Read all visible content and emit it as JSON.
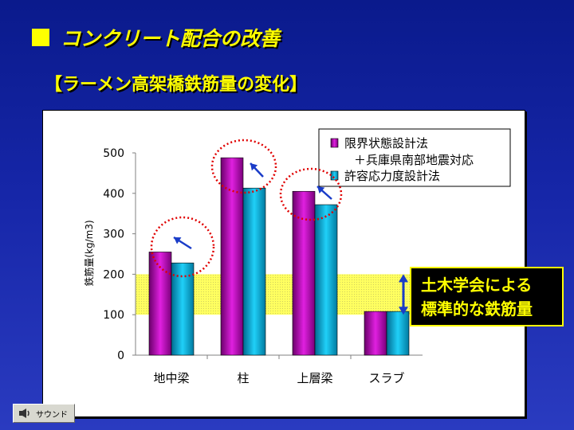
{
  "slide": {
    "title": "コンクリート配合の改善",
    "subtitle": "【ラーメン高架橋鉄筋量の変化】",
    "callout_line1": "土木学会による",
    "callout_line2": "標準的な鉄筋量",
    "sound_label": "サウンド"
  },
  "colors": {
    "background": "#1626a8",
    "title": "#ffff00",
    "series_limit_state": "#cc00cc",
    "series_allowable": "#00b0d8",
    "band": "#ffff66",
    "circle": "#e00000",
    "arrow": "#1a3cc8"
  },
  "chart_data": {
    "type": "bar",
    "categories": [
      "地中梁",
      "柱",
      "上層梁",
      "スラブ"
    ],
    "series": [
      {
        "name": "限界状態設計法＋兵庫県南部地震対応",
        "values": [
          255,
          488,
          405,
          108
        ]
      },
      {
        "name": "許容応力度設計法",
        "values": [
          228,
          413,
          372,
          108
        ]
      }
    ],
    "ylabel": "鉄筋量(kg/m3)",
    "xlabel": "",
    "ylim": [
      0,
      500
    ],
    "yticks": [
      "0",
      "100",
      "200",
      "300",
      "400",
      "500"
    ],
    "legend_line1": "限界状態設計法",
    "legend_line2": "＋兵庫県南部地震対応",
    "legend_line3": "許容応力度設計法",
    "legend_position": "top-right",
    "band_range": [
      100,
      200
    ],
    "grid": false
  }
}
